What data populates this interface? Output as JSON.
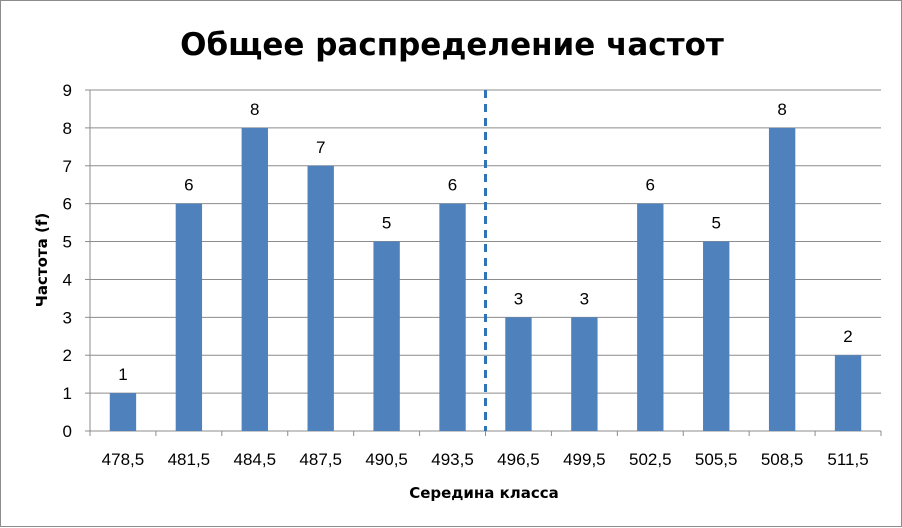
{
  "chart_data": {
    "type": "bar",
    "title": "Общее распределение частот",
    "xlabel": "Середина класса",
    "ylabel": "Частота (f)",
    "categories": [
      "478,5",
      "481,5",
      "484,5",
      "487,5",
      "490,5",
      "493,5",
      "496,5",
      "499,5",
      "502,5",
      "505,5",
      "508,5",
      "511,5"
    ],
    "values": [
      1,
      6,
      8,
      7,
      5,
      6,
      3,
      3,
      6,
      5,
      8,
      2
    ],
    "ylim": [
      0,
      9
    ],
    "yticks": [
      "0",
      "1",
      "2",
      "3",
      "4",
      "5",
      "6",
      "7",
      "8",
      "9"
    ],
    "grid": "horizontal",
    "legend": "none",
    "data_labels": true,
    "reference_line": {
      "style": "dashed",
      "between_categories": [
        "493,5",
        "496,5"
      ]
    },
    "colors": {
      "bar": "#4f81bd",
      "reference_line": "#2e75b6",
      "grid": "#8c8c8c"
    }
  }
}
